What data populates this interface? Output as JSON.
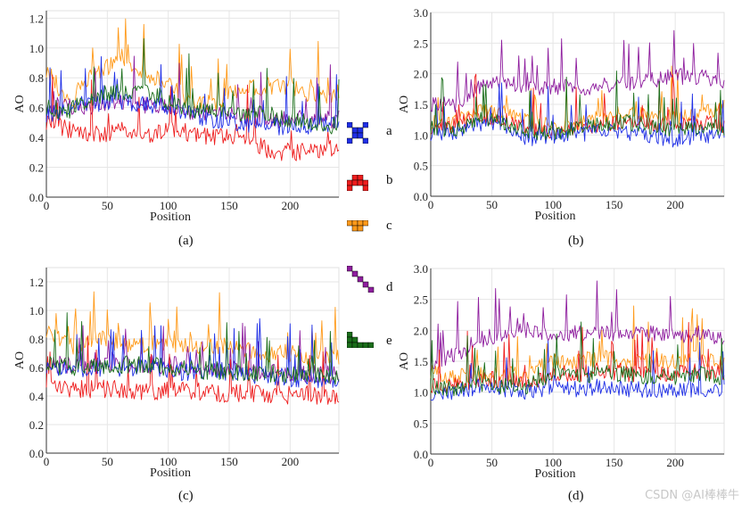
{
  "figure": {
    "watermark": "CSDN @AI棒棒牛",
    "colors": {
      "a": "#1f2fe6",
      "b": "#ee1d1d",
      "c": "#ff9a1a",
      "d": "#8e1d9e",
      "e": "#1a6e1a"
    }
  },
  "legend": [
    {
      "key": "a",
      "label": "a",
      "color": "#1f2fe6",
      "icon": "x-pattern-icon"
    },
    {
      "key": "b",
      "label": "b",
      "color": "#ee1d1d",
      "icon": "arch-pattern-icon"
    },
    {
      "key": "c",
      "label": "c",
      "color": "#ff9a1a",
      "icon": "t-pattern-icon"
    },
    {
      "key": "d",
      "label": "d",
      "color": "#8e1d9e",
      "icon": "diagonal-pattern-icon"
    },
    {
      "key": "e",
      "label": "e",
      "color": "#1a6e1a",
      "icon": "step-pattern-icon"
    }
  ],
  "chart_data": [
    {
      "type": "line",
      "caption": "(a)",
      "xlabel": "Position",
      "ylabel": "AO",
      "xlim": [
        0,
        240
      ],
      "ylim": [
        0.0,
        1.25
      ],
      "xticks": [
        0,
        50,
        100,
        150,
        200
      ],
      "yticks": [
        0.0,
        0.2,
        0.4,
        0.6,
        0.8,
        1.0,
        1.2
      ],
      "xtick_labels": [
        "0",
        "50",
        "100",
        "150",
        "200"
      ],
      "ytick_labels": [
        "0.0",
        "0.2",
        "0.4",
        "0.6",
        "0.8",
        "1.0",
        "1.2"
      ],
      "grid": true,
      "series": [
        {
          "name": "a",
          "x": [
            0,
            20,
            40,
            60,
            80,
            100,
            120,
            140,
            160,
            180,
            200,
            220,
            240
          ],
          "values": [
            0.55,
            0.58,
            0.62,
            0.65,
            0.63,
            0.6,
            0.55,
            0.52,
            0.5,
            0.48,
            0.47,
            0.48,
            0.5
          ]
        },
        {
          "name": "b",
          "x": [
            0,
            20,
            40,
            60,
            80,
            100,
            120,
            140,
            160,
            180,
            200,
            220,
            240
          ],
          "values": [
            0.5,
            0.45,
            0.42,
            0.45,
            0.42,
            0.45,
            0.43,
            0.4,
            0.4,
            0.32,
            0.3,
            0.3,
            0.33
          ]
        },
        {
          "name": "c",
          "x": [
            0,
            20,
            40,
            60,
            80,
            100,
            120,
            140,
            160,
            180,
            200,
            220,
            240
          ],
          "values": [
            0.85,
            0.62,
            0.85,
            0.9,
            0.85,
            0.75,
            0.65,
            0.62,
            0.72,
            0.75,
            0.75,
            0.68,
            0.7
          ]
        },
        {
          "name": "d",
          "x": [
            0,
            20,
            40,
            60,
            80,
            100,
            120,
            140,
            160,
            180,
            200,
            220,
            240
          ],
          "values": [
            0.58,
            0.6,
            0.62,
            0.65,
            0.62,
            0.6,
            0.58,
            0.56,
            0.55,
            0.53,
            0.52,
            0.52,
            0.52
          ]
        },
        {
          "name": "e",
          "x": [
            0,
            20,
            40,
            60,
            80,
            100,
            120,
            140,
            160,
            180,
            200,
            220,
            240
          ],
          "values": [
            0.6,
            0.58,
            0.68,
            0.7,
            0.72,
            0.65,
            0.58,
            0.58,
            0.55,
            0.55,
            0.52,
            0.5,
            0.48
          ]
        }
      ]
    },
    {
      "type": "line",
      "caption": "(b)",
      "xlabel": "Position",
      "ylabel": "AO",
      "xlim": [
        0,
        240
      ],
      "ylim": [
        0.0,
        3.0
      ],
      "xticks": [
        0,
        50,
        100,
        150,
        200
      ],
      "yticks": [
        0.0,
        0.5,
        1.0,
        1.5,
        2.0,
        2.5,
        3.0
      ],
      "xtick_labels": [
        "0",
        "50",
        "100",
        "150",
        "200"
      ],
      "ytick_labels": [
        "0.0",
        "0.5",
        "1.0",
        "1.5",
        "2.0",
        "2.5",
        "3.0"
      ],
      "grid": true,
      "series": [
        {
          "name": "a",
          "x": [
            0,
            20,
            40,
            60,
            80,
            100,
            120,
            140,
            160,
            180,
            200,
            220,
            240
          ],
          "values": [
            1.0,
            1.05,
            1.2,
            1.15,
            0.95,
            1.0,
            1.0,
            1.1,
            1.05,
            1.0,
            0.9,
            1.0,
            1.0
          ]
        },
        {
          "name": "b",
          "x": [
            0,
            20,
            40,
            60,
            80,
            100,
            120,
            140,
            160,
            180,
            200,
            220,
            240
          ],
          "values": [
            1.1,
            1.15,
            1.3,
            1.25,
            1.1,
            1.05,
            1.1,
            1.2,
            1.2,
            1.2,
            1.15,
            1.2,
            1.15
          ]
        },
        {
          "name": "c",
          "x": [
            0,
            20,
            40,
            60,
            80,
            100,
            120,
            140,
            160,
            180,
            200,
            220,
            240
          ],
          "values": [
            1.2,
            1.2,
            1.4,
            1.35,
            1.2,
            1.15,
            1.2,
            1.3,
            1.35,
            1.3,
            1.3,
            1.35,
            1.45
          ]
        },
        {
          "name": "d",
          "x": [
            0,
            20,
            40,
            60,
            80,
            100,
            120,
            140,
            160,
            180,
            200,
            220,
            240
          ],
          "values": [
            1.5,
            1.5,
            1.8,
            1.9,
            1.75,
            1.8,
            1.75,
            1.8,
            1.85,
            1.9,
            1.95,
            1.95,
            1.9
          ]
        },
        {
          "name": "e",
          "x": [
            0,
            20,
            40,
            60,
            80,
            100,
            120,
            140,
            160,
            180,
            200,
            220,
            240
          ],
          "values": [
            1.1,
            1.1,
            1.25,
            1.2,
            1.05,
            1.05,
            1.1,
            1.2,
            1.2,
            1.15,
            1.1,
            1.1,
            1.1
          ]
        }
      ]
    },
    {
      "type": "line",
      "caption": "(c)",
      "xlabel": "Position",
      "ylabel": "AO",
      "xlim": [
        0,
        240
      ],
      "ylim": [
        0.0,
        1.3
      ],
      "xticks": [
        0,
        50,
        100,
        150,
        200
      ],
      "yticks": [
        0.0,
        0.2,
        0.4,
        0.6,
        0.8,
        1.0,
        1.2
      ],
      "xtick_labels": [
        "0",
        "50",
        "100",
        "150",
        "200"
      ],
      "ytick_labels": [
        "0.0",
        "0.2",
        "0.4",
        "0.6",
        "0.8",
        "1.0",
        "1.2"
      ],
      "grid": true,
      "series": [
        {
          "name": "a",
          "x": [
            0,
            20,
            40,
            60,
            80,
            100,
            120,
            140,
            160,
            180,
            200,
            220,
            240
          ],
          "values": [
            0.6,
            0.58,
            0.6,
            0.6,
            0.6,
            0.58,
            0.56,
            0.58,
            0.55,
            0.55,
            0.52,
            0.52,
            0.5
          ]
        },
        {
          "name": "b",
          "x": [
            0,
            20,
            40,
            60,
            80,
            100,
            120,
            140,
            160,
            180,
            200,
            220,
            240
          ],
          "values": [
            0.5,
            0.45,
            0.45,
            0.45,
            0.42,
            0.44,
            0.43,
            0.42,
            0.42,
            0.42,
            0.4,
            0.4,
            0.38
          ]
        },
        {
          "name": "c",
          "x": [
            0,
            20,
            40,
            60,
            80,
            100,
            120,
            140,
            160,
            180,
            200,
            220,
            240
          ],
          "values": [
            0.85,
            0.75,
            0.8,
            0.78,
            0.76,
            0.78,
            0.75,
            0.76,
            0.72,
            0.7,
            0.7,
            0.68,
            0.68
          ]
        },
        {
          "name": "d",
          "x": [
            0,
            20,
            40,
            60,
            80,
            100,
            120,
            140,
            160,
            180,
            200,
            220,
            240
          ],
          "values": [
            0.62,
            0.62,
            0.62,
            0.63,
            0.62,
            0.62,
            0.6,
            0.6,
            0.58,
            0.57,
            0.56,
            0.55,
            0.55
          ]
        },
        {
          "name": "e",
          "x": [
            0,
            20,
            40,
            60,
            80,
            100,
            120,
            140,
            160,
            180,
            200,
            220,
            240
          ],
          "values": [
            0.62,
            0.6,
            0.62,
            0.62,
            0.62,
            0.6,
            0.58,
            0.58,
            0.57,
            0.56,
            0.55,
            0.54,
            0.52
          ]
        }
      ]
    },
    {
      "type": "line",
      "caption": "(d)",
      "xlabel": "Position",
      "ylabel": "AO",
      "xlim": [
        0,
        240
      ],
      "ylim": [
        0.0,
        3.0
      ],
      "xticks": [
        0,
        50,
        100,
        150,
        200
      ],
      "yticks": [
        0.0,
        0.5,
        1.0,
        1.5,
        2.0,
        2.5,
        3.0
      ],
      "xtick_labels": [
        "0",
        "50",
        "100",
        "150",
        "200"
      ],
      "ytick_labels": [
        "0.0",
        "0.5",
        "1.0",
        "1.5",
        "2.0",
        "2.5",
        "3.0"
      ],
      "grid": true,
      "series": [
        {
          "name": "a",
          "x": [
            0,
            20,
            40,
            60,
            80,
            100,
            120,
            140,
            160,
            180,
            200,
            220,
            240
          ],
          "values": [
            0.95,
            1.0,
            1.1,
            1.05,
            1.0,
            1.1,
            1.05,
            1.1,
            1.05,
            1.05,
            1.0,
            1.05,
            1.0
          ]
        },
        {
          "name": "b",
          "x": [
            0,
            20,
            40,
            60,
            80,
            100,
            120,
            140,
            160,
            180,
            200,
            220,
            240
          ],
          "values": [
            1.1,
            1.1,
            1.2,
            1.2,
            1.15,
            1.3,
            1.3,
            1.35,
            1.3,
            1.3,
            1.3,
            1.35,
            1.3
          ]
        },
        {
          "name": "c",
          "x": [
            0,
            20,
            40,
            60,
            80,
            100,
            120,
            140,
            160,
            180,
            200,
            220,
            240
          ],
          "values": [
            1.3,
            1.25,
            1.3,
            1.3,
            1.3,
            1.5,
            1.5,
            1.55,
            1.5,
            1.5,
            1.5,
            1.55,
            1.5
          ]
        },
        {
          "name": "d",
          "x": [
            0,
            20,
            40,
            60,
            80,
            100,
            120,
            140,
            160,
            180,
            200,
            220,
            240
          ],
          "values": [
            1.45,
            1.6,
            1.85,
            1.95,
            2.0,
            1.95,
            1.95,
            1.95,
            1.95,
            1.95,
            1.9,
            1.95,
            1.85
          ]
        },
        {
          "name": "e",
          "x": [
            0,
            20,
            40,
            60,
            80,
            100,
            120,
            140,
            160,
            180,
            200,
            220,
            240
          ],
          "values": [
            1.05,
            1.05,
            1.15,
            1.1,
            1.1,
            1.3,
            1.25,
            1.3,
            1.3,
            1.25,
            1.25,
            1.3,
            1.25
          ]
        }
      ]
    }
  ]
}
